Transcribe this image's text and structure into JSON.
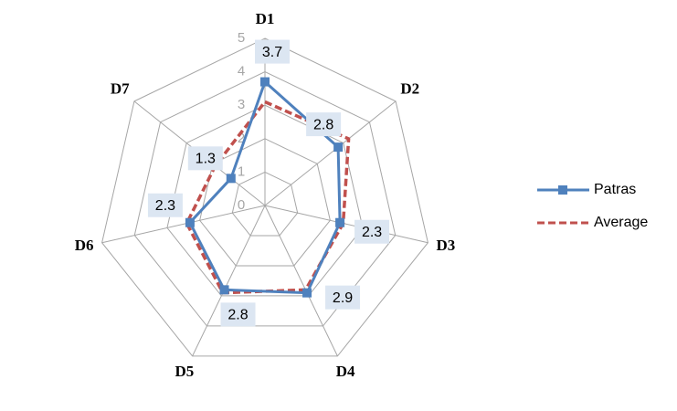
{
  "chart_data": {
    "type": "radar",
    "categories": [
      "D1",
      "D2",
      "D3",
      "D4",
      "D5",
      "D6",
      "D7"
    ],
    "series": [
      {
        "name": "Patras",
        "color": "#4f81bd",
        "values": [
          3.7,
          2.8,
          2.3,
          2.9,
          2.8,
          2.3,
          1.3
        ]
      },
      {
        "name": "Average",
        "color": "#c0504d",
        "values": [
          3.1,
          3.2,
          2.4,
          2.8,
          2.9,
          2.4,
          1.9
        ]
      }
    ],
    "rlim": [
      0,
      5
    ],
    "rticks": [
      0,
      1,
      2,
      3,
      4,
      5
    ],
    "grid": true,
    "legend": "right"
  }
}
